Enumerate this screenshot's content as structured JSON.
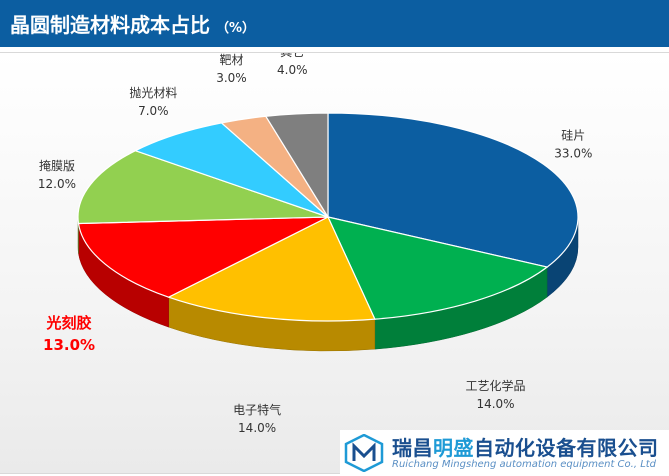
{
  "header": {
    "title": "晶圆制造材料成本占比",
    "unit": "（%）"
  },
  "chart_data": {
    "type": "pie",
    "title": "晶圆制造材料成本占比",
    "unit": "%",
    "slices": [
      {
        "label": "硅片",
        "value": 33.0,
        "value_text": "33.0%",
        "color": "#0c5ea1"
      },
      {
        "label": "工艺化学品",
        "value": 14.0,
        "value_text": "14.0%",
        "color": "#00b050"
      },
      {
        "label": "电子特气",
        "value": 14.0,
        "value_text": "14.0%",
        "color": "#ffc000"
      },
      {
        "label": "光刻胶",
        "value": 13.0,
        "value_text": "13.0%",
        "color": "#ff0000",
        "highlight": true
      },
      {
        "label": "掩膜版",
        "value": 12.0,
        "value_text": "12.0%",
        "color": "#92d050"
      },
      {
        "label": "抛光材料",
        "value": 7.0,
        "value_text": "7.0%",
        "color": "#33ccff"
      },
      {
        "label": "靶材",
        "value": 3.0,
        "value_text": "3.0%",
        "color": "#f4b183"
      },
      {
        "label": "其它",
        "value": 4.0,
        "value_text": "4.0%",
        "color": "#7f7f7f"
      }
    ]
  },
  "logo": {
    "name_part1": "瑞昌",
    "name_part2": "明盛",
    "name_part3": "自动化设备有限公司",
    "english": "Ruichang Mingsheng automation equipment Co., Ltd"
  }
}
